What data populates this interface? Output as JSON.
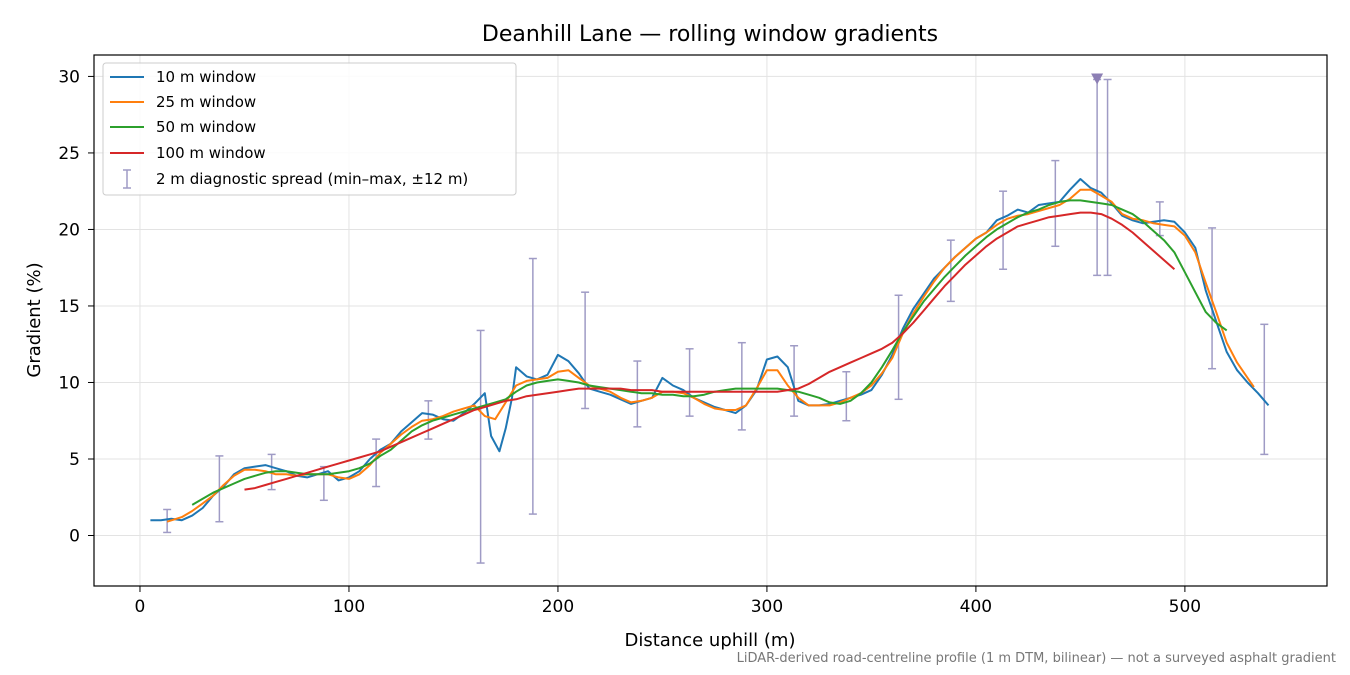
{
  "chart_data": {
    "type": "line",
    "title": "Deanhill Lane — rolling window gradients",
    "xlabel": "Distance uphill (m)",
    "ylabel": "Gradient (%)",
    "xlim": [
      -22,
      568
    ],
    "ylim": [
      -3.3,
      31.4
    ],
    "xticks": [
      0,
      100,
      200,
      300,
      400,
      500
    ],
    "yticks": [
      0,
      5,
      10,
      15,
      20,
      25,
      30
    ],
    "grid": true,
    "legend_position": "upper left",
    "series": [
      {
        "name": "10 m window",
        "color": "#1f77b4",
        "x": [
          5,
          10,
          15,
          20,
          25,
          30,
          35,
          40,
          45,
          50,
          55,
          60,
          65,
          70,
          75,
          80,
          85,
          90,
          95,
          100,
          105,
          110,
          115,
          120,
          125,
          130,
          135,
          140,
          145,
          150,
          155,
          160,
          165,
          168,
          172,
          175,
          178,
          180,
          185,
          190,
          195,
          200,
          205,
          210,
          215,
          220,
          225,
          230,
          235,
          240,
          245,
          250,
          255,
          260,
          265,
          270,
          275,
          280,
          285,
          290,
          295,
          300,
          305,
          310,
          315,
          320,
          325,
          330,
          335,
          340,
          345,
          350,
          355,
          360,
          365,
          370,
          375,
          380,
          385,
          390,
          395,
          400,
          405,
          410,
          415,
          420,
          425,
          430,
          435,
          440,
          445,
          450,
          455,
          460,
          465,
          470,
          475,
          480,
          485,
          490,
          495,
          500,
          505,
          510,
          515,
          520,
          525,
          530,
          535,
          540
        ],
        "y": [
          1.0,
          1.0,
          1.1,
          1.0,
          1.3,
          1.8,
          2.6,
          3.2,
          4.0,
          4.4,
          4.5,
          4.6,
          4.4,
          4.2,
          3.9,
          3.8,
          4.0,
          4.2,
          3.6,
          3.8,
          4.2,
          5.0,
          5.6,
          6.0,
          6.8,
          7.4,
          8.0,
          7.9,
          7.6,
          7.5,
          8.0,
          8.6,
          9.3,
          6.5,
          5.5,
          7.0,
          9.0,
          11.0,
          10.4,
          10.2,
          10.5,
          11.8,
          11.4,
          10.6,
          9.6,
          9.4,
          9.2,
          8.9,
          8.6,
          8.8,
          9.0,
          10.3,
          9.8,
          9.5,
          9.0,
          8.7,
          8.4,
          8.2,
          8.0,
          8.5,
          9.5,
          11.5,
          11.7,
          11.0,
          8.8,
          8.5,
          8.5,
          8.6,
          8.8,
          9.0,
          9.2,
          9.5,
          10.5,
          11.8,
          13.5,
          14.8,
          15.8,
          16.8,
          17.5,
          18.2,
          18.8,
          19.4,
          19.8,
          20.6,
          20.9,
          21.3,
          21.1,
          21.6,
          21.7,
          21.8,
          22.6,
          23.3,
          22.7,
          22.4,
          21.7,
          20.9,
          20.6,
          20.4,
          20.5,
          20.6,
          20.5,
          19.8,
          18.8,
          16.0,
          14.0,
          12.0,
          10.8,
          10.0,
          9.3,
          8.5
        ]
      },
      {
        "name": "25 m window",
        "color": "#ff7f0e",
        "x": [
          13,
          20,
          25,
          30,
          35,
          40,
          45,
          50,
          55,
          60,
          65,
          70,
          75,
          80,
          85,
          90,
          95,
          100,
          105,
          110,
          115,
          120,
          125,
          130,
          135,
          140,
          145,
          150,
          155,
          160,
          165,
          170,
          175,
          180,
          185,
          190,
          195,
          200,
          205,
          210,
          215,
          220,
          225,
          230,
          235,
          240,
          245,
          250,
          255,
          260,
          265,
          270,
          275,
          280,
          285,
          290,
          295,
          300,
          305,
          310,
          315,
          320,
          325,
          330,
          335,
          340,
          345,
          350,
          355,
          360,
          365,
          370,
          375,
          380,
          385,
          390,
          395,
          400,
          405,
          410,
          415,
          420,
          425,
          430,
          435,
          440,
          445,
          450,
          455,
          460,
          465,
          470,
          475,
          480,
          485,
          490,
          495,
          500,
          505,
          510,
          515,
          520,
          525,
          530,
          533
        ],
        "y": [
          0.9,
          1.2,
          1.6,
          2.1,
          2.6,
          3.3,
          3.9,
          4.3,
          4.3,
          4.2,
          4.0,
          4.0,
          3.9,
          4.0,
          4.0,
          4.0,
          3.8,
          3.7,
          4.0,
          4.6,
          5.4,
          6.0,
          6.6,
          7.1,
          7.5,
          7.6,
          7.8,
          8.1,
          8.3,
          8.5,
          7.8,
          7.6,
          8.7,
          9.8,
          10.1,
          10.2,
          10.3,
          10.7,
          10.8,
          10.3,
          9.8,
          9.6,
          9.4,
          9.0,
          8.7,
          8.8,
          9.0,
          9.4,
          9.4,
          9.3,
          9.0,
          8.6,
          8.3,
          8.2,
          8.2,
          8.5,
          9.6,
          10.8,
          10.8,
          9.8,
          9.0,
          8.5,
          8.5,
          8.5,
          8.7,
          9.0,
          9.3,
          9.8,
          10.6,
          11.6,
          13.2,
          14.5,
          15.6,
          16.6,
          17.5,
          18.2,
          18.8,
          19.4,
          19.8,
          20.3,
          20.7,
          20.9,
          21.0,
          21.2,
          21.4,
          21.6,
          22.0,
          22.6,
          22.6,
          22.2,
          21.8,
          21.0,
          20.7,
          20.6,
          20.4,
          20.3,
          20.2,
          19.6,
          18.5,
          16.5,
          14.6,
          12.6,
          11.3,
          10.3,
          9.7
        ]
      },
      {
        "name": "50 m window",
        "color": "#2ca02c",
        "x": [
          25,
          30,
          35,
          40,
          45,
          50,
          55,
          60,
          65,
          70,
          75,
          80,
          85,
          90,
          95,
          100,
          105,
          110,
          115,
          120,
          125,
          130,
          135,
          140,
          145,
          150,
          155,
          160,
          165,
          170,
          175,
          180,
          185,
          190,
          195,
          200,
          205,
          210,
          215,
          220,
          225,
          230,
          235,
          240,
          245,
          250,
          255,
          260,
          265,
          270,
          275,
          280,
          285,
          290,
          295,
          300,
          305,
          310,
          315,
          320,
          325,
          330,
          335,
          340,
          345,
          350,
          355,
          360,
          365,
          370,
          375,
          380,
          385,
          390,
          395,
          400,
          405,
          410,
          415,
          420,
          425,
          430,
          435,
          440,
          445,
          450,
          455,
          460,
          465,
          470,
          475,
          480,
          485,
          490,
          495,
          500,
          505,
          510,
          515,
          520
        ],
        "y": [
          2.0,
          2.4,
          2.8,
          3.1,
          3.4,
          3.7,
          3.9,
          4.1,
          4.2,
          4.2,
          4.1,
          4.0,
          4.0,
          4.0,
          4.1,
          4.2,
          4.4,
          4.7,
          5.2,
          5.6,
          6.2,
          6.8,
          7.2,
          7.5,
          7.7,
          7.9,
          8.1,
          8.3,
          8.5,
          8.7,
          8.9,
          9.4,
          9.8,
          10.0,
          10.1,
          10.2,
          10.1,
          10.0,
          9.8,
          9.7,
          9.6,
          9.5,
          9.4,
          9.3,
          9.3,
          9.2,
          9.2,
          9.1,
          9.1,
          9.2,
          9.4,
          9.5,
          9.6,
          9.6,
          9.6,
          9.6,
          9.6,
          9.5,
          9.4,
          9.2,
          9.0,
          8.7,
          8.6,
          8.8,
          9.3,
          10.0,
          11.0,
          12.1,
          13.3,
          14.3,
          15.3,
          16.1,
          16.9,
          17.6,
          18.3,
          18.9,
          19.5,
          20.0,
          20.4,
          20.8,
          21.1,
          21.3,
          21.6,
          21.8,
          21.9,
          21.9,
          21.8,
          21.7,
          21.6,
          21.3,
          21.0,
          20.5,
          19.9,
          19.3,
          18.5,
          17.2,
          15.9,
          14.6,
          13.9,
          13.4
        ]
      },
      {
        "name": "100 m window",
        "color": "#d62728",
        "x": [
          50,
          55,
          60,
          65,
          70,
          75,
          80,
          85,
          90,
          95,
          100,
          105,
          110,
          115,
          120,
          125,
          130,
          135,
          140,
          145,
          150,
          155,
          160,
          165,
          170,
          175,
          180,
          185,
          190,
          195,
          200,
          205,
          210,
          215,
          220,
          225,
          230,
          235,
          240,
          245,
          250,
          255,
          260,
          265,
          270,
          275,
          280,
          285,
          290,
          295,
          300,
          305,
          310,
          315,
          320,
          325,
          330,
          335,
          340,
          345,
          350,
          355,
          360,
          365,
          370,
          375,
          380,
          385,
          390,
          395,
          400,
          405,
          410,
          415,
          420,
          425,
          430,
          435,
          440,
          445,
          450,
          455,
          460,
          465,
          470,
          475,
          480,
          485,
          490,
          495
        ],
        "y": [
          3.0,
          3.1,
          3.3,
          3.5,
          3.7,
          3.9,
          4.1,
          4.3,
          4.5,
          4.7,
          4.9,
          5.1,
          5.3,
          5.5,
          5.8,
          6.1,
          6.4,
          6.7,
          7.0,
          7.3,
          7.6,
          7.9,
          8.2,
          8.4,
          8.6,
          8.8,
          8.9,
          9.1,
          9.2,
          9.3,
          9.4,
          9.5,
          9.6,
          9.6,
          9.6,
          9.6,
          9.6,
          9.5,
          9.5,
          9.5,
          9.4,
          9.4,
          9.4,
          9.4,
          9.4,
          9.4,
          9.4,
          9.4,
          9.4,
          9.4,
          9.4,
          9.4,
          9.5,
          9.6,
          9.9,
          10.3,
          10.7,
          11.0,
          11.3,
          11.6,
          11.9,
          12.2,
          12.6,
          13.2,
          13.9,
          14.7,
          15.5,
          16.3,
          17.0,
          17.7,
          18.3,
          18.9,
          19.4,
          19.8,
          20.2,
          20.4,
          20.6,
          20.8,
          20.9,
          21.0,
          21.1,
          21.1,
          21.0,
          20.7,
          20.3,
          19.8,
          19.2,
          18.6,
          18.0,
          17.4
        ]
      }
    ],
    "error_bars": {
      "name": "2 m diagnostic spread (min–max, ±12 m)",
      "color": "#9f9bc5",
      "x": [
        13,
        38,
        63,
        88,
        113,
        138,
        163,
        188,
        213,
        238,
        263,
        288,
        313,
        338,
        363,
        388,
        413,
        438,
        458,
        463,
        488,
        513,
        538
      ],
      "low": [
        0.2,
        0.9,
        3.0,
        2.3,
        3.2,
        6.3,
        -1.8,
        1.4,
        8.3,
        7.1,
        7.8,
        6.9,
        7.8,
        7.5,
        8.9,
        15.3,
        17.4,
        18.9,
        17.0,
        17.0,
        19.6,
        10.9,
        5.3
      ],
      "high": [
        1.7,
        5.2,
        5.3,
        4.5,
        6.3,
        8.8,
        13.4,
        18.1,
        15.9,
        11.4,
        12.2,
        12.6,
        12.4,
        10.7,
        15.7,
        19.3,
        22.5,
        24.5,
        29.8,
        29.8,
        21.8,
        20.1,
        13.8
      ]
    },
    "clip_marker": {
      "x": 458,
      "y": 29.8,
      "color": "#8c7fb4"
    }
  },
  "footnote": "LiDAR-derived road-centreline profile (1 m DTM, bilinear) — not a surveyed asphalt gradient"
}
